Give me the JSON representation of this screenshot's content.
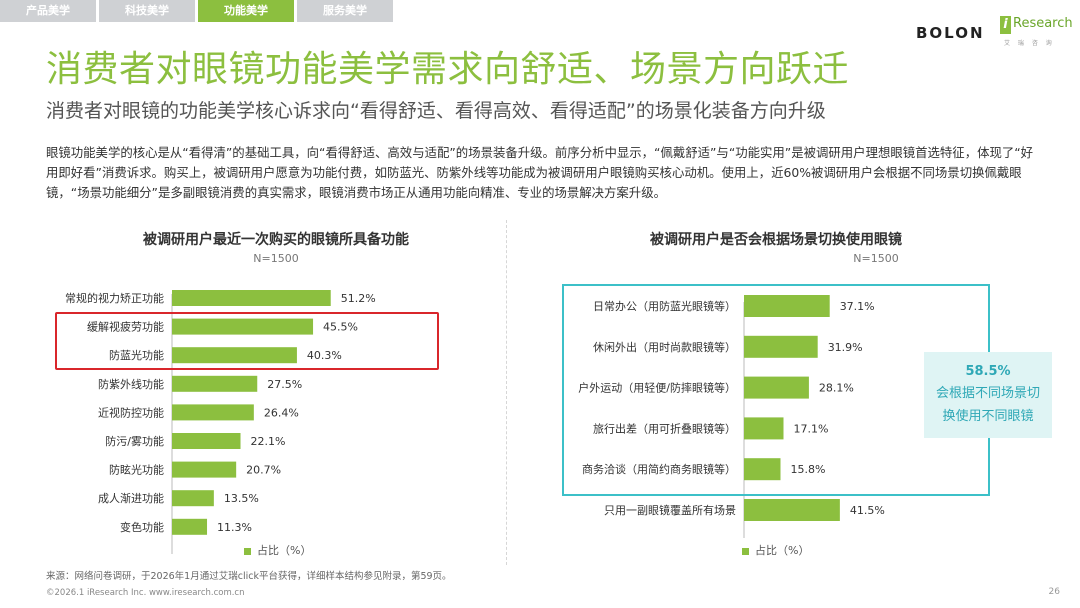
{
  "tabs": [
    {
      "label": "产品美学",
      "active": false
    },
    {
      "label": "科技美学",
      "active": false
    },
    {
      "label": "功能美学",
      "active": true
    },
    {
      "label": "服务美学",
      "active": false
    }
  ],
  "logo": {
    "brand": "BOLON",
    "partner_i": "i",
    "partner_text": "Research",
    "partner_cn": "艾 瑞 咨 询"
  },
  "title": "消费者对眼镜功能美学需求向舒适、场景方向跃迁",
  "subtitle": "消费者对眼镜的功能美学核心诉求向“看得舒适、看得高效、看得适配”的场景化装备方向升级",
  "description": "眼镜功能美学的核心是从“看得清”的基础工具，向“看得舒适、高效与适配”的场景装备升级。前序分析中显示，“佩戴舒适”与“功能实用”是被调研用户理想眼镜首选特征，体现了“好用即好看”消费诉求。购买上，被调研用户愿意为功能付费，如防蓝光、防紫外线等功能成为被调研用户眼镜购买核心动机。使用上，近60%被调研用户会根据不同场景切换佩戴眼镜，“场景功能细分”是多副眼镜消费的真实需求，眼镜消费市场正从通用功能向精准、专业的场景解决方案升级。",
  "colors": {
    "accent": "#8cbf3f",
    "highlight": "#d9262b",
    "teal": "#3cc0c8",
    "callout_bg": "#dff4f4"
  },
  "chart_data": [
    {
      "type": "bar",
      "orientation": "horizontal",
      "title": "被调研用户最近一次购买的眼镜所具备功能",
      "note": "N=1500",
      "categories": [
        "常规的视力矫正功能",
        "缓解视疲劳功能",
        "防蓝光功能",
        "防紫外线功能",
        "近视防控功能",
        "防污/雾功能",
        "防眩光功能",
        "成人渐进功能",
        "变色功能"
      ],
      "values": [
        51.2,
        45.5,
        40.3,
        27.5,
        26.4,
        22.1,
        20.7,
        13.5,
        11.3
      ],
      "value_labels": [
        "51.2%",
        "45.5%",
        "40.3%",
        "27.5%",
        "26.4%",
        "22.1%",
        "20.7%",
        "13.5%",
        "11.3%"
      ],
      "highlighted": [
        "缓解视疲劳功能",
        "防蓝光功能"
      ],
      "legend": "占比（%）",
      "grid": false
    },
    {
      "type": "bar",
      "orientation": "horizontal",
      "title": "被调研用户是否会根据场景切换使用眼镜",
      "note": "N=1500",
      "categories": [
        "日常办公（用防蓝光眼镜等）",
        "休闲外出（用时尚款眼镜等）",
        "户外运动（用轻便/防摔眼镜等）",
        "旅行出差（用可折叠眼镜等）",
        "商务洽谈（用简约商务眼镜等）",
        "只用一副眼镜覆盖所有场景"
      ],
      "values": [
        37.1,
        31.9,
        28.1,
        17.1,
        15.8,
        41.5
      ],
      "value_labels": [
        "37.1%",
        "31.9%",
        "28.1%",
        "17.1%",
        "15.8%",
        "41.5%"
      ],
      "legend": "占比（%）",
      "grid": false
    }
  ],
  "callout": {
    "percent": "58.5%",
    "text": "会根据不同场景切换使用不同眼镜"
  },
  "source": "来源：网络问卷调研，于2026年1月通过艾瑞click平台获得，详细样本结构参见附录，第59页。",
  "copyright": "©2026.1 iResearch Inc. www.iresearch.com.cn",
  "page_number": "26"
}
